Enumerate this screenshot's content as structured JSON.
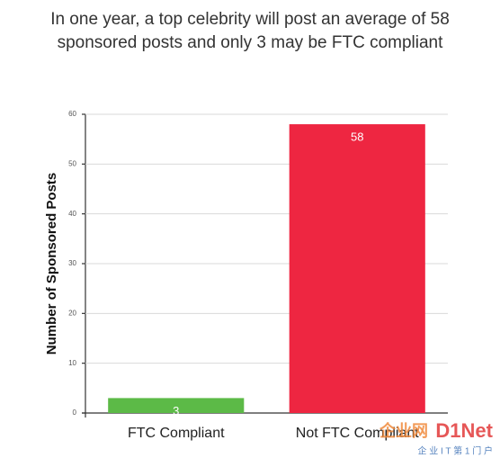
{
  "chart_data": {
    "type": "bar",
    "title": [
      "In one year, a top celebrity will post an average of 58",
      "sponsored posts and only 3 may be FTC compliant"
    ],
    "y_label": "Number of Sponsored Posts",
    "categories": [
      "FTC Compliant",
      "Not FTC Compliant"
    ],
    "values": [
      3,
      58
    ],
    "colors": [
      "#5cba47",
      "#ee2641"
    ],
    "ylim": [
      0,
      60
    ],
    "yticks": [
      0,
      10,
      20,
      30,
      40,
      50,
      60
    ],
    "grid": true,
    "watermark": [
      "企业网",
      "D1Net",
      "企 业 I T 第 1 门 户"
    ]
  }
}
